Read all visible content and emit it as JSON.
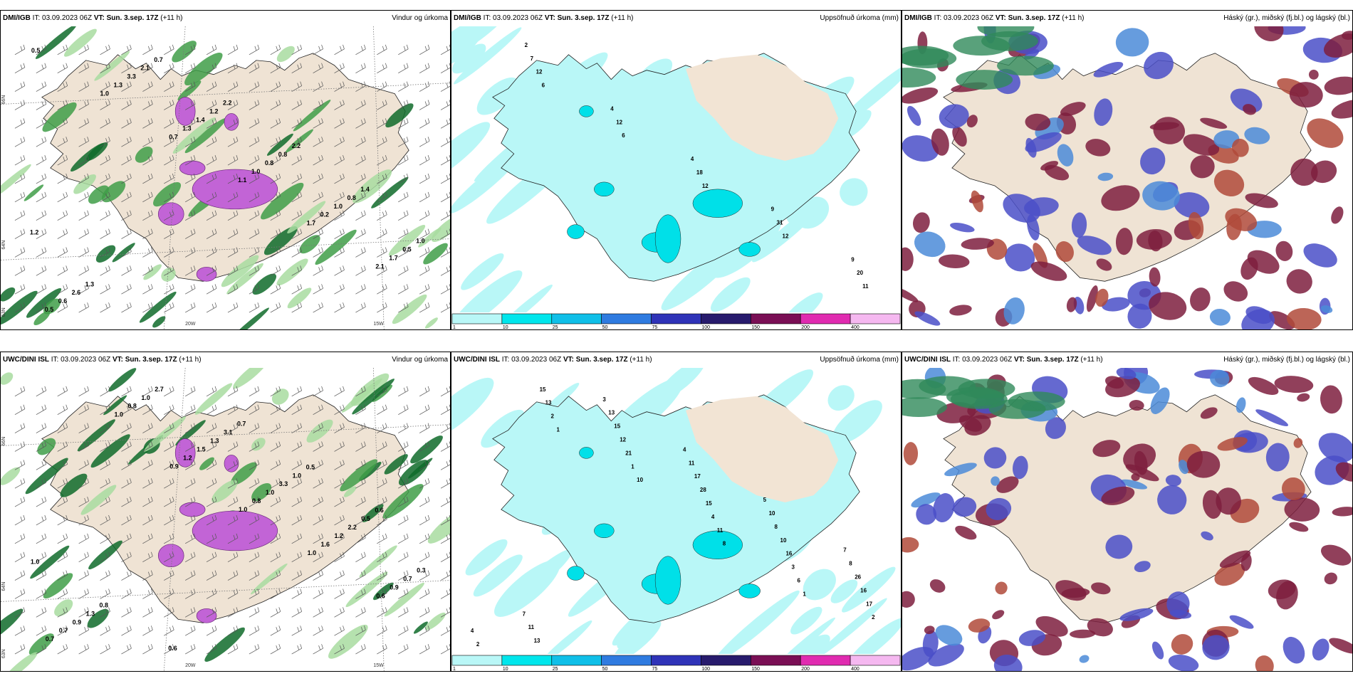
{
  "rows": [
    {
      "prefix": "DMI/IGB",
      "it_label": "IT:",
      "it_value": "03.09.2023 06Z",
      "vt_label": "VT:",
      "vt_value": "Sun. 3.sep. 17Z",
      "lead": "(+11 h)"
    },
    {
      "prefix": "UWC/DINI ISL",
      "it_label": "IT:",
      "it_value": "03.09.2023 06Z",
      "vt_label": "VT:",
      "vt_value": "Sun. 3.sep. 17Z",
      "lead": "(+11 h)"
    }
  ],
  "panel_titles": {
    "wind": "Vindur og úrkoma",
    "precip": "Uppsöfnuð úrkoma (mm)",
    "cloud": "Háský (gr.), miðský (fj.bl.) og lágský (bl.)"
  },
  "map_axis_labels": {
    "lat": [
      "66N",
      "64N",
      "63N"
    ],
    "lon": [
      "20W",
      "15W"
    ]
  },
  "wind_labels_top": [
    "0.5",
    "1.0",
    "0.7",
    "1.1",
    "1.7",
    "2.1",
    "0.5",
    "1.3",
    "1.3",
    "1.0",
    "0.2",
    "1.7",
    "0.6",
    "3.3",
    "1.4",
    "0.8",
    "1.0",
    "0.5",
    "2.6",
    "2.1",
    "1.2",
    "0.8",
    "0.8",
    "1.0",
    "1.3",
    "0.7",
    "2.2",
    "2.2",
    "1.4",
    "1.2"
  ],
  "wind_labels_bottom": [
    "0.9",
    "1.0",
    "1.0",
    "0.6",
    "0.7",
    "1.0",
    "1.2",
    "0.8",
    "1.6",
    "0.9",
    "0.7",
    "0.8",
    "1.5",
    "1.0",
    "1.2",
    "0.7",
    "0.9",
    "1.0",
    "1.3",
    "3.3",
    "2.2",
    "0.3",
    "1.3",
    "2.7",
    "3.1",
    "1.0",
    "0.5",
    "1.0",
    "0.8",
    "0.6",
    "0.7",
    "0.5",
    "0.6"
  ],
  "precip_labels_top": [
    "6",
    "6",
    "12",
    "12",
    "11",
    "12",
    "12",
    "18",
    "31",
    "20",
    "7",
    "4",
    "4",
    "9",
    "9",
    "2"
  ],
  "precip_labels_bottom": [
    "8",
    "1",
    "2",
    "1",
    "10",
    "11",
    "6",
    "4",
    "2",
    "1",
    "4",
    "3",
    "2",
    "13",
    "21",
    "15",
    "16",
    "17",
    "15",
    "12",
    "28",
    "10",
    "16",
    "13",
    "15",
    "17",
    "8",
    "26",
    "11",
    "13",
    "11",
    "10",
    "8",
    "7",
    "3",
    "4",
    "5",
    "7"
  ],
  "colorbar": {
    "values": [
      "1",
      "10",
      "25",
      "50",
      "75",
      "100",
      "150",
      "200",
      "400"
    ],
    "colors": [
      "#b9f7f7",
      "#00e6ec",
      "#10bfe8",
      "#2f7be0",
      "#2f33b8",
      "#281b6d",
      "#7a0f55",
      "#e02bb0",
      "#f5b8f0"
    ]
  }
}
